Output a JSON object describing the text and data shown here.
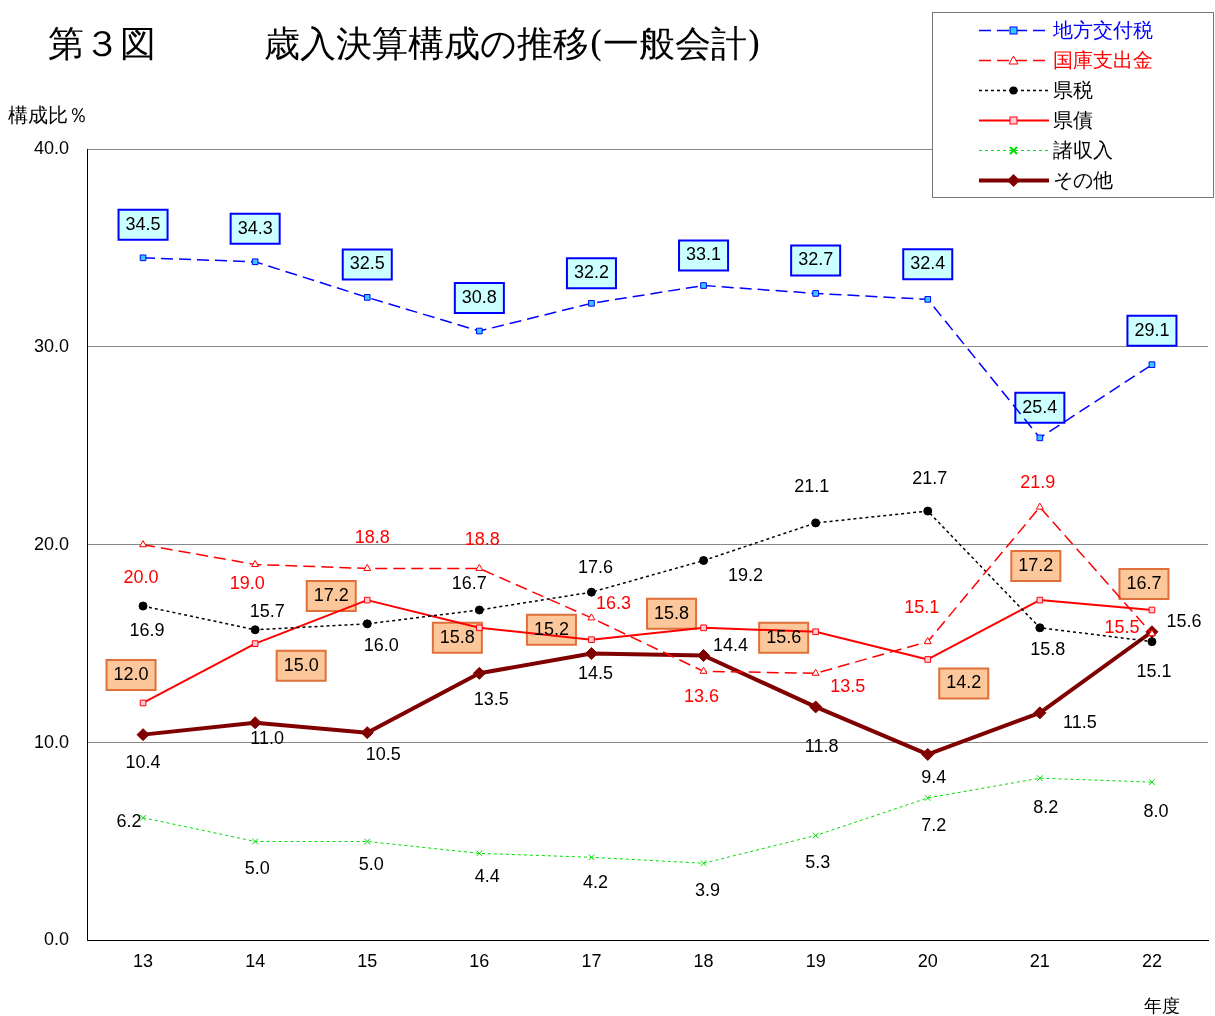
{
  "chart_data": {
    "type": "line",
    "title": "第３図　　　歳入決算構成の推移(一般会計)",
    "ylabel": "構成比％",
    "xlabel": "年度",
    "categories": [
      "13",
      "14",
      "15",
      "16",
      "17",
      "18",
      "19",
      "20",
      "21",
      "22"
    ],
    "series": [
      {
        "name": "地方交付税",
        "color": "#0000ff",
        "marker": "square",
        "line_style": "dashed",
        "values": [
          34.5,
          34.3,
          32.5,
          30.8,
          32.2,
          33.1,
          32.7,
          32.4,
          25.4,
          29.1
        ],
        "value_labels": [
          "34.5",
          "34.3",
          "32.5",
          "30.8",
          "32.2",
          "33.1",
          "32.7",
          "32.4",
          "25.4",
          "29.1"
        ]
      },
      {
        "name": "国庫支出金",
        "color": "#ff0000",
        "marker": "triangle",
        "line_style": "dashed",
        "values": [
          20.0,
          19.0,
          18.8,
          18.8,
          16.3,
          13.6,
          13.5,
          15.1,
          21.9,
          15.5
        ],
        "value_labels": [
          "20.0",
          "19.0",
          "18.8",
          "18.8",
          "16.3",
          "13.6",
          "13.5",
          "15.1",
          "21.9",
          "15.5"
        ]
      },
      {
        "name": "県税",
        "color": "#000000",
        "marker": "circle",
        "line_style": "dotted",
        "values": [
          16.9,
          15.7,
          16.0,
          16.7,
          17.6,
          19.2,
          21.1,
          21.7,
          15.8,
          15.1
        ],
        "value_labels": [
          "16.9",
          "15.7",
          "16.0",
          "16.7",
          "17.6",
          "19.2",
          "21.1",
          "21.7",
          "15.8",
          "15.1"
        ]
      },
      {
        "name": "県債",
        "color": "#ff0000",
        "marker": "square",
        "line_style": "solid",
        "values": [
          12.0,
          15.0,
          17.2,
          15.8,
          15.2,
          15.8,
          15.6,
          14.2,
          17.2,
          16.7
        ],
        "value_labels": [
          "12.0",
          "15.0",
          "17.2",
          "15.8",
          "15.2",
          "15.8",
          "15.6",
          "14.2",
          "17.2",
          "16.7"
        ]
      },
      {
        "name": "諸収入",
        "color": "#00dd00",
        "marker": "cross",
        "line_style": "dotted",
        "values": [
          6.2,
          5.0,
          5.0,
          4.4,
          4.2,
          3.9,
          5.3,
          7.2,
          8.2,
          8.0
        ],
        "value_labels": [
          "6.2",
          "5.0",
          "5.0",
          "4.4",
          "4.2",
          "3.9",
          "5.3",
          "7.2",
          "8.2",
          "8.0"
        ]
      },
      {
        "name": "その他",
        "color": "#800000",
        "marker": "diamond",
        "line_style": "solid",
        "values": [
          10.4,
          11.0,
          10.5,
          13.5,
          14.5,
          14.4,
          11.8,
          9.4,
          11.5,
          15.6
        ],
        "value_labels": [
          "10.4",
          "11.0",
          "10.5",
          "13.5",
          "14.5",
          "14.4",
          "11.8",
          "9.4",
          "11.5",
          "15.6"
        ]
      }
    ],
    "ylim": [
      0,
      40
    ],
    "yticks": [
      {
        "value": 0,
        "label": "0.0"
      },
      {
        "value": 10,
        "label": "10.0"
      },
      {
        "value": 20,
        "label": "20.0"
      },
      {
        "value": 30,
        "label": "30.0"
      },
      {
        "value": 40,
        "label": "40.0"
      }
    ],
    "grid": "y",
    "legend": "top right"
  }
}
